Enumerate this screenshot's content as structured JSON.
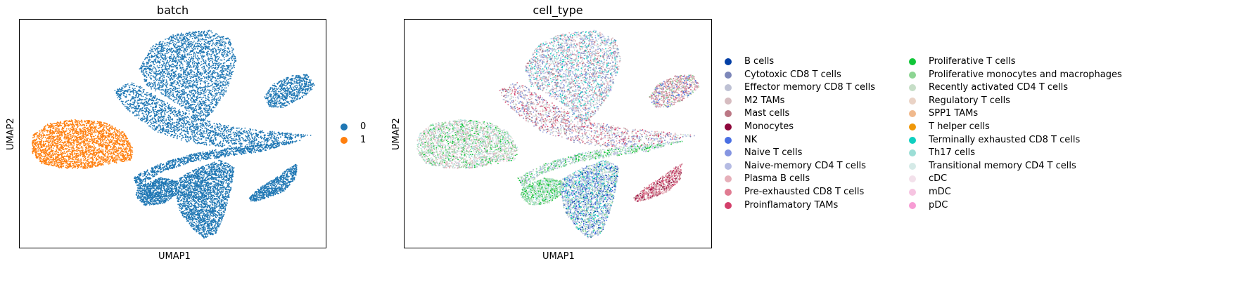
{
  "panels": [
    {
      "title": "batch",
      "xlabel": "UMAP1",
      "ylabel": "UMAP2"
    },
    {
      "title": "cell_type",
      "xlabel": "UMAP1",
      "ylabel": "UMAP2"
    }
  ],
  "legends": {
    "batch": [
      {
        "label": "0",
        "color": "#1f77b4"
      },
      {
        "label": "1",
        "color": "#ff7f0e"
      }
    ],
    "cell_type": [
      {
        "label": "B cells",
        "color": "#023fa5"
      },
      {
        "label": "Cytotoxic CD8 T cells",
        "color": "#7d87b9"
      },
      {
        "label": "Effector memory CD8 T cells",
        "color": "#bec1d4"
      },
      {
        "label": "M2 TAMs",
        "color": "#d6bcc0"
      },
      {
        "label": "Mast cells",
        "color": "#bb7784"
      },
      {
        "label": "Monocytes",
        "color": "#8e063b"
      },
      {
        "label": "NK",
        "color": "#4a6fe3"
      },
      {
        "label": "Naive T cells",
        "color": "#8595e1"
      },
      {
        "label": "Naive-memory CD4 T cells",
        "color": "#b5bbe3"
      },
      {
        "label": "Plasma B cells",
        "color": "#e6afb9"
      },
      {
        "label": "Pre-exhausted CD8 T cells",
        "color": "#e07b91"
      },
      {
        "label": "Proinflamatory TAMs",
        "color": "#d33f6a"
      },
      {
        "label": "Proliferative T cells",
        "color": "#11c638"
      },
      {
        "label": "Proliferative monocytes and macrophages",
        "color": "#8dd593"
      },
      {
        "label": "Recently activated CD4 T cells",
        "color": "#c6dec7"
      },
      {
        "label": "Regulatory T cells",
        "color": "#ead3c6"
      },
      {
        "label": "SPP1 TAMs",
        "color": "#f0b98d"
      },
      {
        "label": "T helper cells",
        "color": "#ef9708"
      },
      {
        "label": "Terminally exhausted CD8 T cells",
        "color": "#0fcfc0"
      },
      {
        "label": "Th17 cells",
        "color": "#9cded6"
      },
      {
        "label": "Transitional memory CD4 T cells",
        "color": "#d5eae7"
      },
      {
        "label": "cDC",
        "color": "#f3e1eb"
      },
      {
        "label": "mDC",
        "color": "#f6c4e1"
      },
      {
        "label": "pDC",
        "color": "#f79cd4"
      }
    ]
  },
  "chart_data": [
    {
      "type": "scatter",
      "title": "batch",
      "xlabel": "UMAP1",
      "ylabel": "UMAP2",
      "grid": false,
      "ticks": false,
      "legend_placement": "right",
      "series": [
        {
          "name": "0",
          "color": "#1f77b4"
        },
        {
          "name": "1",
          "color": "#ff7f0e"
        }
      ]
    },
    {
      "type": "scatter",
      "title": "cell_type",
      "xlabel": "UMAP1",
      "ylabel": "UMAP2",
      "grid": false,
      "ticks": false,
      "legend_placement": "right, two columns",
      "series_source": "legends.cell_type"
    }
  ]
}
